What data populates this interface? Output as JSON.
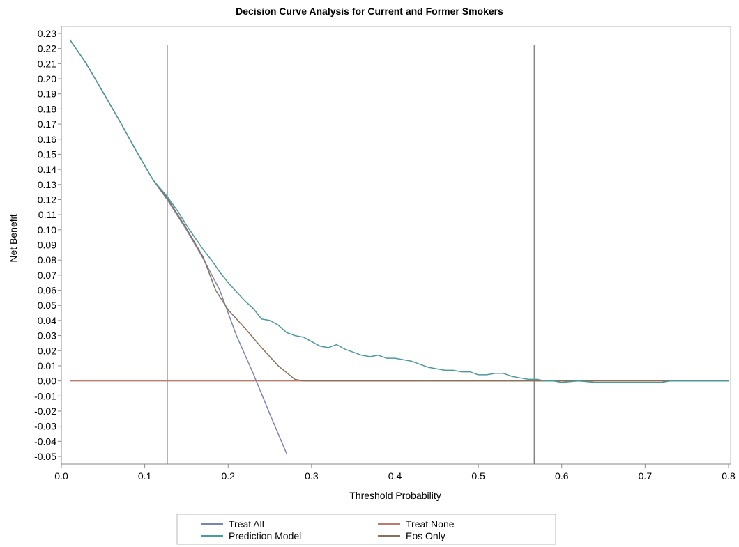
{
  "chart_data": {
    "type": "line",
    "title": "Decision Curve Analysis for Current and Former Smokers",
    "xlabel": "Threshold Probability",
    "ylabel": "Net Benefit",
    "xlim": [
      0.0,
      0.8
    ],
    "ylim": [
      -0.05,
      0.23
    ],
    "x_ticks": [
      "0.0",
      "0.1",
      "0.2",
      "0.3",
      "0.4",
      "0.5",
      "0.6",
      "0.7",
      "0.8"
    ],
    "y_ticks": [
      "0.23",
      "0.22",
      "0.21",
      "0.20",
      "0.19",
      "0.18",
      "0.17",
      "0.16",
      "0.15",
      "0.14",
      "0.13",
      "0.12",
      "0.11",
      "0.10",
      "0.09",
      "0.08",
      "0.07",
      "0.06",
      "0.05",
      "0.04",
      "0.03",
      "0.02",
      "0.01",
      "0.00",
      "-0.01",
      "-0.02",
      "-0.03",
      "-0.04",
      "-0.05"
    ],
    "grid": false,
    "legend_position": "bottom",
    "vertical_reference_lines": [
      0.127,
      0.567
    ],
    "series": [
      {
        "name": "Treat All",
        "color": "#7b84b5",
        "x": [
          0.01,
          0.03,
          0.05,
          0.07,
          0.09,
          0.11,
          0.127,
          0.15,
          0.17,
          0.19,
          0.21,
          0.23,
          0.25,
          0.27
        ],
        "y": [
          0.226,
          0.21,
          0.191,
          0.172,
          0.152,
          0.133,
          0.12,
          0.1,
          0.081,
          0.06,
          0.03,
          0.005,
          -0.022,
          -0.048
        ]
      },
      {
        "name": "Treat None",
        "color": "#c07a6a",
        "x": [
          0.01,
          0.8
        ],
        "y": [
          0.0,
          0.0
        ]
      },
      {
        "name": "Prediction Model",
        "color": "#4a9a9a",
        "x": [
          0.01,
          0.03,
          0.05,
          0.07,
          0.09,
          0.11,
          0.127,
          0.14,
          0.15,
          0.16,
          0.17,
          0.18,
          0.19,
          0.2,
          0.21,
          0.22,
          0.23,
          0.24,
          0.25,
          0.26,
          0.27,
          0.28,
          0.29,
          0.3,
          0.31,
          0.32,
          0.33,
          0.34,
          0.35,
          0.36,
          0.37,
          0.38,
          0.39,
          0.4,
          0.41,
          0.42,
          0.43,
          0.44,
          0.45,
          0.46,
          0.47,
          0.48,
          0.49,
          0.5,
          0.51,
          0.52,
          0.53,
          0.54,
          0.55,
          0.56,
          0.57,
          0.58,
          0.59,
          0.6,
          0.62,
          0.64,
          0.66,
          0.68,
          0.7,
          0.72,
          0.73,
          0.8
        ],
        "y": [
          0.226,
          0.21,
          0.191,
          0.172,
          0.152,
          0.133,
          0.122,
          0.112,
          0.103,
          0.095,
          0.087,
          0.08,
          0.072,
          0.065,
          0.059,
          0.053,
          0.048,
          0.041,
          0.04,
          0.037,
          0.032,
          0.03,
          0.029,
          0.026,
          0.023,
          0.022,
          0.024,
          0.021,
          0.019,
          0.017,
          0.016,
          0.017,
          0.015,
          0.015,
          0.014,
          0.013,
          0.011,
          0.009,
          0.008,
          0.007,
          0.007,
          0.006,
          0.006,
          0.004,
          0.004,
          0.005,
          0.005,
          0.003,
          0.002,
          0.001,
          0.001,
          0.0,
          0.0,
          -0.001,
          0.0,
          -0.001,
          -0.001,
          -0.001,
          -0.001,
          -0.001,
          0.0,
          0.0
        ]
      },
      {
        "name": "Eos Only",
        "color": "#8a7058",
        "x": [
          0.01,
          0.03,
          0.05,
          0.07,
          0.09,
          0.11,
          0.127,
          0.15,
          0.17,
          0.185,
          0.2,
          0.22,
          0.24,
          0.26,
          0.28,
          0.29,
          0.8
        ],
        "y": [
          0.226,
          0.21,
          0.191,
          0.172,
          0.152,
          0.133,
          0.121,
          0.101,
          0.082,
          0.06,
          0.047,
          0.035,
          0.022,
          0.01,
          0.001,
          0.0,
          0.0
        ]
      }
    ]
  }
}
